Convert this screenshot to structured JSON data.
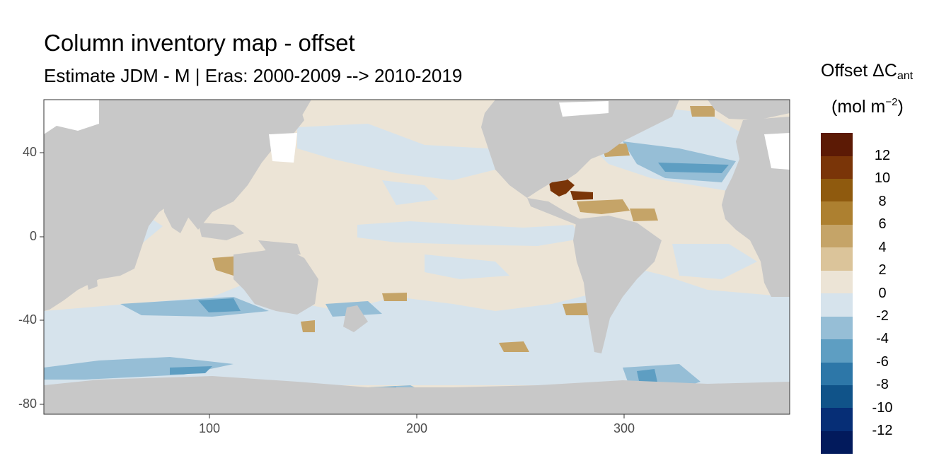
{
  "title": "Column inventory map - offset",
  "subtitle": "Estimate JDM - M | Eras: 2000-2009 --> 2010-2019",
  "legend": {
    "title_main": "Offset ΔC",
    "title_sub": "ant",
    "unit_main": "(mol m",
    "unit_sup": "−2",
    "unit_close": ")",
    "labels": [
      "12",
      "10",
      "8",
      "6",
      "4",
      "2",
      "0",
      "-2",
      "-4",
      "-6",
      "-8",
      "-10",
      "-12"
    ],
    "colors": [
      "#5c1a05",
      "#7a3508",
      "#8f5a0e",
      "#ad8030",
      "#c5a468",
      "#dbc49a",
      "#ece4d6",
      "#d6e3ec",
      "#96bed6",
      "#5e9ec2",
      "#2d77a8",
      "#105389",
      "#062e76",
      "#021a5c"
    ]
  },
  "axes": {
    "y_ticks": [
      "40",
      "0",
      "-40",
      "-80"
    ],
    "x_ticks": [
      "100",
      "200",
      "300"
    ]
  },
  "colors": {
    "land": "#c8c8c8",
    "ocean_neutral": "#ece4d6",
    "ocean_slight_negative": "#d6e3ec",
    "missing": "#ffffff"
  }
}
